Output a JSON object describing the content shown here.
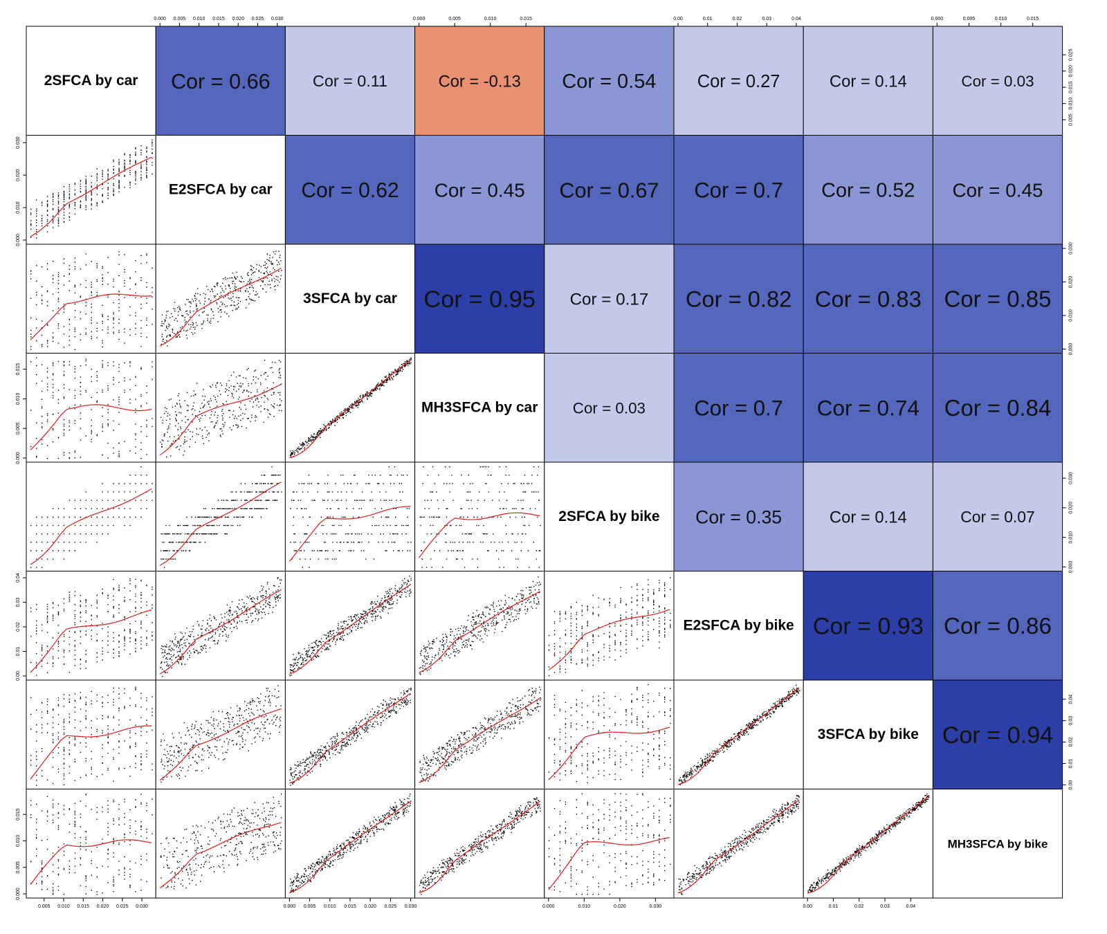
{
  "chart_data": {
    "type": "scatterplot_matrix",
    "variables": [
      "2SFCA by car",
      "E2SFCA by car",
      "3SFCA by car",
      "MH3SFCA by car",
      "2SFCA by bike",
      "E2SFCA by bike",
      "3SFCA by bike",
      "MH3SFCA by bike"
    ],
    "correlation_prefix": "Cor = ",
    "correlations": [
      {
        "row": 0,
        "col": 1,
        "value": "0.66"
      },
      {
        "row": 0,
        "col": 2,
        "value": "0.11"
      },
      {
        "row": 0,
        "col": 3,
        "value": "-0.13"
      },
      {
        "row": 0,
        "col": 4,
        "value": "0.54"
      },
      {
        "row": 0,
        "col": 5,
        "value": "0.27"
      },
      {
        "row": 0,
        "col": 6,
        "value": "0.14"
      },
      {
        "row": 0,
        "col": 7,
        "value": "0.03"
      },
      {
        "row": 1,
        "col": 2,
        "value": "0.62"
      },
      {
        "row": 1,
        "col": 3,
        "value": "0.45"
      },
      {
        "row": 1,
        "col": 4,
        "value": "0.67"
      },
      {
        "row": 1,
        "col": 5,
        "value": "0.7"
      },
      {
        "row": 1,
        "col": 6,
        "value": "0.52"
      },
      {
        "row": 1,
        "col": 7,
        "value": "0.45"
      },
      {
        "row": 2,
        "col": 3,
        "value": "0.95"
      },
      {
        "row": 2,
        "col": 4,
        "value": "0.17"
      },
      {
        "row": 2,
        "col": 5,
        "value": "0.82"
      },
      {
        "row": 2,
        "col": 6,
        "value": "0.83"
      },
      {
        "row": 2,
        "col": 7,
        "value": "0.85"
      },
      {
        "row": 3,
        "col": 4,
        "value": "0.03"
      },
      {
        "row": 3,
        "col": 5,
        "value": "0.7"
      },
      {
        "row": 3,
        "col": 6,
        "value": "0.74"
      },
      {
        "row": 3,
        "col": 7,
        "value": "0.84"
      },
      {
        "row": 4,
        "col": 5,
        "value": "0.35"
      },
      {
        "row": 4,
        "col": 6,
        "value": "0.14"
      },
      {
        "row": 4,
        "col": 7,
        "value": "0.07"
      },
      {
        "row": 5,
        "col": 6,
        "value": "0.93"
      },
      {
        "row": 5,
        "col": 7,
        "value": "0.86"
      },
      {
        "row": 6,
        "col": 7,
        "value": "0.94"
      }
    ],
    "color_scale": {
      "negative": "#e8906f",
      "low": "#c3c9e8",
      "mid": "#8a97d4",
      "high": "#5567bd",
      "very_high": "#2c3fa6"
    },
    "axes": {
      "top": [
        {
          "col": 1,
          "ticks": [
            "0.000",
            "0.005",
            "0.010",
            "0.015",
            "0.020",
            "0.025",
            "0.030"
          ],
          "range": [
            0,
            0.031
          ]
        },
        {
          "col": 3,
          "ticks": [
            "0.000",
            "0.005",
            "0.010",
            "0.015"
          ],
          "range": [
            0,
            0.017
          ]
        },
        {
          "col": 5,
          "ticks": [
            "0.00",
            "0.01",
            "0.02",
            "0.03",
            "0.04"
          ],
          "range": [
            0,
            0.041
          ]
        },
        {
          "col": 7,
          "ticks": [
            "0.000",
            "0.005",
            "0.010",
            "0.015"
          ],
          "range": [
            0,
            0.019
          ]
        }
      ],
      "bottom": [
        {
          "col": 0,
          "ticks": [
            "0.005",
            "0.010",
            "0.015",
            "0.020",
            "0.025",
            "0.030"
          ],
          "range": [
            0.0015,
            0.0325
          ]
        },
        {
          "col": 2,
          "ticks": [
            "0.000",
            "0.005",
            "0.010",
            "0.015",
            "0.020",
            "0.025",
            "0.030"
          ],
          "range": [
            0,
            0.03
          ]
        },
        {
          "col": 4,
          "ticks": [
            "0.000",
            "0.010",
            "0.020",
            "0.030"
          ],
          "range": [
            0,
            0.034
          ]
        },
        {
          "col": 6,
          "ticks": [
            "0.00",
            "0.01",
            "0.02",
            "0.03",
            "0.04"
          ],
          "range": [
            0,
            0.047
          ]
        }
      ],
      "left": [
        {
          "row": 1,
          "ticks": [
            "0.000",
            "0.010",
            "0.020",
            "0.030"
          ],
          "range": [
            0,
            0.031
          ]
        },
        {
          "row": 3,
          "ticks": [
            "0.000",
            "0.005",
            "0.010",
            "0.015"
          ],
          "range": [
            0,
            0.017
          ]
        },
        {
          "row": 5,
          "ticks": [
            "0.00",
            "0.01",
            "0.02",
            "0.03",
            "0.04"
          ],
          "range": [
            0,
            0.041
          ]
        },
        {
          "row": 7,
          "ticks": [
            "0.000",
            "0.005",
            "0.010",
            "0.015"
          ],
          "range": [
            0,
            0.019
          ]
        }
      ],
      "right": [
        {
          "row": 0,
          "ticks": [
            "0.005",
            "0.010",
            "0.015",
            "0.020",
            "0.025"
          ],
          "range": [
            0.0015,
            0.0325
          ]
        },
        {
          "row": 2,
          "ticks": [
            "0.000",
            "0.010",
            "0.020",
            "0.030"
          ],
          "range": [
            0,
            0.03
          ]
        },
        {
          "row": 4,
          "ticks": [
            "0.000",
            "0.010",
            "0.020",
            "0.030"
          ],
          "range": [
            0,
            0.034
          ]
        },
        {
          "row": 6,
          "ticks": [
            "0.00",
            "0.01",
            "0.02",
            "0.03",
            "0.04"
          ],
          "range": [
            0,
            0.047
          ]
        }
      ]
    },
    "scatter": {
      "point_color": "#000000",
      "smoother_color": "#e01b1b"
    }
  }
}
